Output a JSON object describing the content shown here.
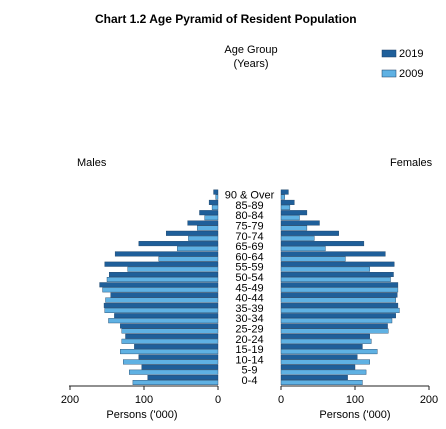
{
  "chart_data": {
    "type": "bar",
    "orientation": "horizontal-pyramid",
    "title": "Chart 1.2  Age Pyramid of Resident Population",
    "category_label": "Age Group\n(Years)",
    "left_label": "Males",
    "right_label": "Females",
    "xlabel_left": "Persons ('000)",
    "xlabel_right": "Persons ('000)",
    "xlim": [
      0,
      200
    ],
    "x_ticks_left": [
      "200",
      "100",
      "0"
    ],
    "x_ticks_right": [
      "0",
      "100",
      "200"
    ],
    "legend_position": "top-right",
    "categories": [
      "0-4",
      "5-9",
      "10-14",
      "15-19",
      "20-24",
      "25-29",
      "30-34",
      "35-39",
      "40-44",
      "45-49",
      "50-54",
      "55-59",
      "60-64",
      "65-69",
      "70-74",
      "75-79",
      "80-84",
      "85-89",
      "90 & Over"
    ],
    "series": [
      {
        "name": "2019",
        "color": "#1f5f9a",
        "males": [
          95,
          103,
          107,
          113,
          125,
          132,
          140,
          154,
          145,
          160,
          147,
          153,
          139,
          107,
          70,
          41,
          25,
          12,
          6
        ],
        "females": [
          90,
          100,
          103,
          110,
          120,
          144,
          155,
          158,
          157,
          158,
          152,
          153,
          141,
          112,
          78,
          52,
          35,
          18,
          10
        ]
      },
      {
        "name": "2009",
        "color": "#5fb1e3",
        "males": [
          115,
          120,
          128,
          132,
          130,
          130,
          148,
          153,
          152,
          156,
          150,
          122,
          80,
          55,
          40,
          28,
          18,
          8,
          3
        ],
        "females": [
          110,
          115,
          120,
          130,
          122,
          145,
          150,
          160,
          155,
          158,
          148,
          120,
          87,
          60,
          45,
          35,
          25,
          12,
          5
        ]
      }
    ]
  }
}
